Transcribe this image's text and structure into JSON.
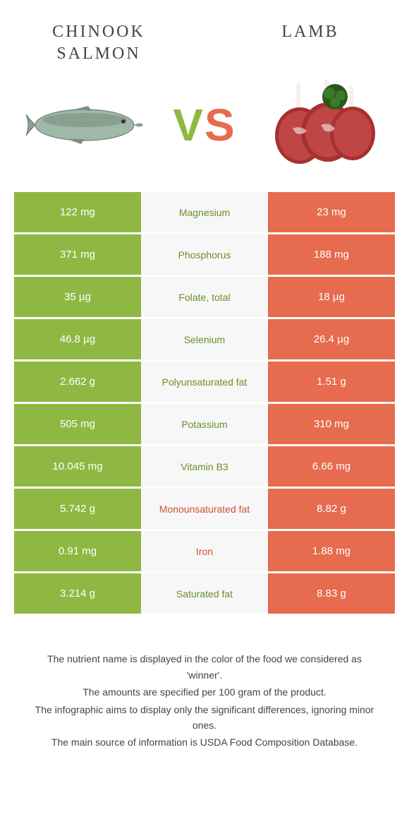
{
  "foods": {
    "left": {
      "name": "CHINOOK SALMON",
      "color": "#8fb843"
    },
    "right": {
      "name": "LAMB",
      "color": "#e66b4f"
    }
  },
  "vs": {
    "v": "V",
    "s": "S"
  },
  "colors": {
    "left_bg": "#8fb843",
    "right_bg": "#e66b4f",
    "mid_bg": "#f7f7f7",
    "left_text": "#ffffff",
    "right_text": "#ffffff",
    "winner_left": "#6a8f2a",
    "winner_right": "#d04e32"
  },
  "rows": [
    {
      "nutrient": "Magnesium",
      "left": "122 mg",
      "right": "23 mg",
      "winner": "left"
    },
    {
      "nutrient": "Phosphorus",
      "left": "371 mg",
      "right": "188 mg",
      "winner": "left"
    },
    {
      "nutrient": "Folate, total",
      "left": "35 µg",
      "right": "18 µg",
      "winner": "left"
    },
    {
      "nutrient": "Selenium",
      "left": "46.8 µg",
      "right": "26.4 µg",
      "winner": "left"
    },
    {
      "nutrient": "Polyunsaturated fat",
      "left": "2.662 g",
      "right": "1.51 g",
      "winner": "left"
    },
    {
      "nutrient": "Potassium",
      "left": "505 mg",
      "right": "310 mg",
      "winner": "left"
    },
    {
      "nutrient": "Vitamin B3",
      "left": "10.045 mg",
      "right": "6.66 mg",
      "winner": "left"
    },
    {
      "nutrient": "Monounsaturated fat",
      "left": "5.742 g",
      "right": "8.82 g",
      "winner": "right"
    },
    {
      "nutrient": "Iron",
      "left": "0.91 mg",
      "right": "1.88 mg",
      "winner": "right"
    },
    {
      "nutrient": "Saturated fat",
      "left": "3.214 g",
      "right": "8.83 g",
      "winner": "left"
    }
  ],
  "footer": {
    "l1": "The nutrient name is displayed in the color of the food we considered as 'winner'.",
    "l2": "The amounts are specified per 100 gram of the product.",
    "l3": "The infographic aims to display only the significant differences, ignoring minor ones.",
    "l4": "The main source of information is USDA Food Composition Database."
  }
}
